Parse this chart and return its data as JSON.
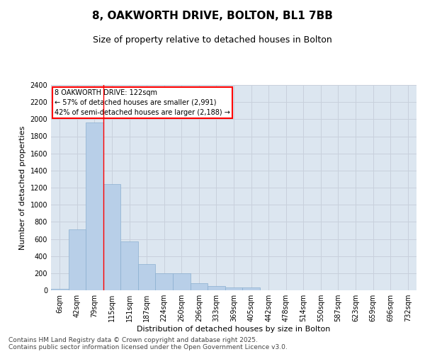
{
  "title1": "8, OAKWORTH DRIVE, BOLTON, BL1 7BB",
  "title2": "Size of property relative to detached houses in Bolton",
  "xlabel": "Distribution of detached houses by size in Bolton",
  "ylabel": "Number of detached properties",
  "categories": [
    "6sqm",
    "42sqm",
    "79sqm",
    "115sqm",
    "151sqm",
    "187sqm",
    "224sqm",
    "260sqm",
    "296sqm",
    "333sqm",
    "369sqm",
    "405sqm",
    "442sqm",
    "478sqm",
    "514sqm",
    "550sqm",
    "587sqm",
    "623sqm",
    "659sqm",
    "696sqm",
    "732sqm"
  ],
  "values": [
    15,
    710,
    1960,
    1240,
    575,
    305,
    200,
    200,
    80,
    48,
    35,
    35,
    0,
    0,
    0,
    0,
    0,
    0,
    0,
    0,
    0
  ],
  "bar_color": "#b8cfe8",
  "bar_edge_color": "#8aafd0",
  "grid_color": "#c8d0dc",
  "background_color": "#dce6f0",
  "vline_x_left": 2.5,
  "vline_color": "red",
  "annotation_text": "8 OAKWORTH DRIVE: 122sqm\n← 57% of detached houses are smaller (2,991)\n42% of semi-detached houses are larger (2,188) →",
  "ylim": [
    0,
    2400
  ],
  "yticks": [
    0,
    200,
    400,
    600,
    800,
    1000,
    1200,
    1400,
    1600,
    1800,
    2000,
    2200,
    2400
  ],
  "footer": "Contains HM Land Registry data © Crown copyright and database right 2025.\nContains public sector information licensed under the Open Government Licence v3.0.",
  "title1_fontsize": 11,
  "title2_fontsize": 9,
  "xlabel_fontsize": 8,
  "ylabel_fontsize": 8,
  "tick_fontsize": 7,
  "footer_fontsize": 6.5
}
